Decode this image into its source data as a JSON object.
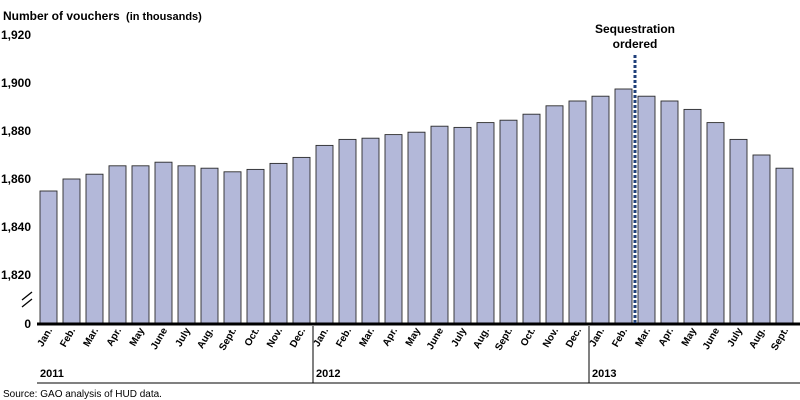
{
  "chart_data": {
    "type": "bar",
    "ylabel": "Number of vouchers",
    "ylabel_unit": "(in thousands)",
    "yticks": [
      "1,920",
      "1,900",
      "1,880",
      "1,860",
      "1,840",
      "1,820",
      "0"
    ],
    "ylim": [
      1810,
      1920
    ],
    "axis_break": true,
    "categories": [
      "Jan.",
      "Feb.",
      "Mar.",
      "Apr.",
      "May",
      "June",
      "July",
      "Aug.",
      "Sept.",
      "Oct.",
      "Nov.",
      "Dec.",
      "Jan.",
      "Feb.",
      "Mar.",
      "Apr.",
      "May",
      "June",
      "July",
      "Aug.",
      "Sept.",
      "Oct.",
      "Nov.",
      "Dec.",
      "Jan.",
      "Feb.",
      "Mar.",
      "Apr.",
      "May",
      "June",
      "July",
      "Aug.",
      "Sept."
    ],
    "years": [
      {
        "label": "2011",
        "start": 0,
        "count": 12
      },
      {
        "label": "2012",
        "start": 12,
        "count": 12
      },
      {
        "label": "2013",
        "start": 24,
        "count": 9
      }
    ],
    "values": [
      1855,
      1860,
      1862,
      1865.5,
      1865.5,
      1867,
      1865.5,
      1864.5,
      1863,
      1864,
      1866.5,
      1869,
      1874,
      1876.5,
      1877,
      1878.5,
      1879.5,
      1882,
      1881.5,
      1883.5,
      1884.5,
      1887,
      1890.5,
      1892.5,
      1894.5,
      1897.5,
      1894.5,
      1892.5,
      1889,
      1883.5,
      1876.5,
      1870,
      1864.5
    ],
    "annotation": {
      "text_line1": "Sequestration",
      "text_line2": "ordered",
      "after_index": 25
    },
    "bar_color": "#b3b8d9",
    "annotation_line_color": "#1f3f7a",
    "grid": false,
    "legend": "none"
  },
  "source": "Source: GAO analysis of HUD data."
}
